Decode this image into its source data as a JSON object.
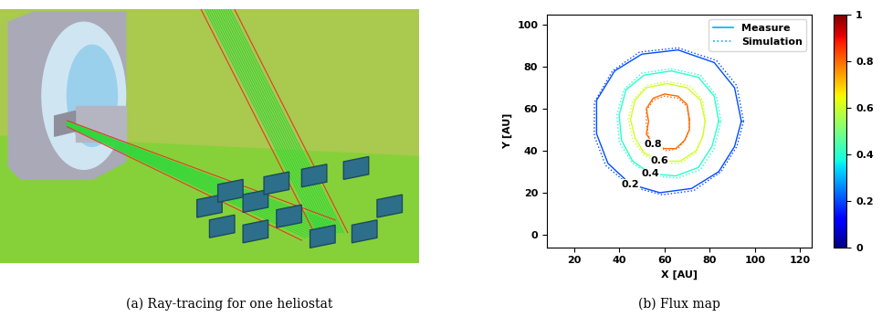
{
  "chart_data": {
    "type": "contour",
    "x_label": "X [AU]",
    "y_label": "Y [AU]",
    "xlim": [
      8,
      125
    ],
    "ylim": [
      -6,
      105
    ],
    "xticks": [
      20,
      40,
      60,
      80,
      100,
      120
    ],
    "yticks": [
      0,
      20,
      40,
      60,
      80,
      100
    ],
    "colorbar": {
      "range": [
        0,
        1
      ],
      "ticks": [
        0,
        0.2,
        0.4,
        0.6,
        0.8,
        1
      ]
    },
    "legend": "upper right",
    "data_labels": true,
    "series": [
      {
        "name": "Measure",
        "line_style": "solid",
        "contours": [
          {
            "level": 0.2,
            "x": [
              94,
              91,
              82,
              66,
              50,
              38,
              30,
              30,
              35,
              45,
              58,
              72,
              84,
              91
            ],
            "y": [
              54,
              70,
              82,
              88,
              86,
              78,
              64,
              48,
              34,
              24,
              20,
              22,
              30,
              42
            ]
          },
          {
            "level": 0.4,
            "x": [
              84,
              82,
              75,
              63,
              51,
              43,
              40,
              41,
              46,
              54,
              65,
              75,
              81
            ],
            "y": [
              54,
              66,
              75,
              78,
              76,
              69,
              57,
              45,
              35,
              29,
              28,
              32,
              42
            ]
          },
          {
            "level": 0.6,
            "x": [
              78,
              76,
              70,
              61,
              52,
              47,
              45,
              47,
              51,
              58,
              67,
              74,
              77
            ],
            "y": [
              54,
              64,
              70,
              72,
              70,
              64,
              55,
              46,
              39,
              35,
              35,
              40,
              47
            ]
          },
          {
            "level": 0.8,
            "x": [
              71,
              70,
              66,
              60,
              55,
              52,
              53,
              52,
              55,
              60,
              65,
              69,
              71
            ],
            "y": [
              55,
              62,
              66,
              67,
              65,
              60,
              54,
              48,
              43,
              41,
              41,
              45,
              50
            ]
          }
        ]
      },
      {
        "name": "Simulation",
        "line_style": "dotted",
        "contours": [
          {
            "level": 0.2,
            "x": [
              95,
              92,
              83,
              66,
              49,
              37,
              29,
              29,
              34,
              45,
              59,
              73,
              85,
              92
            ],
            "y": [
              54,
              71,
              83,
              89,
              87,
              78,
              63,
              47,
              33,
              23,
              19,
              21,
              30,
              42
            ]
          },
          {
            "level": 0.4,
            "x": [
              85,
              83,
              76,
              63,
              50,
              42,
              39,
              40,
              46,
              54,
              66,
              76,
              82
            ],
            "y": [
              54,
              66,
              76,
              79,
              77,
              69,
              57,
              44,
              34,
              28,
              27,
              31,
              41
            ]
          },
          {
            "level": 0.6,
            "x": [
              78,
              77,
              71,
              61,
              52,
              46,
              44,
              46,
              51,
              58,
              67,
              74,
              77
            ],
            "y": [
              55,
              64,
              71,
              73,
              71,
              64,
              55,
              45,
              38,
              34,
              34,
              39,
              47
            ]
          },
          {
            "level": 0.8,
            "x": [
              71,
              70,
              66,
              60,
              55,
              52,
              52,
              53,
              56,
              61,
              66,
              69,
              71
            ],
            "y": [
              54,
              61,
              65,
              66,
              64,
              59,
              53,
              47,
              42,
              40,
              41,
              45,
              50
            ]
          }
        ]
      }
    ]
  },
  "captions": [
    "(a) Ray-tracing for one heliostat",
    "(b) Flux map"
  ]
}
